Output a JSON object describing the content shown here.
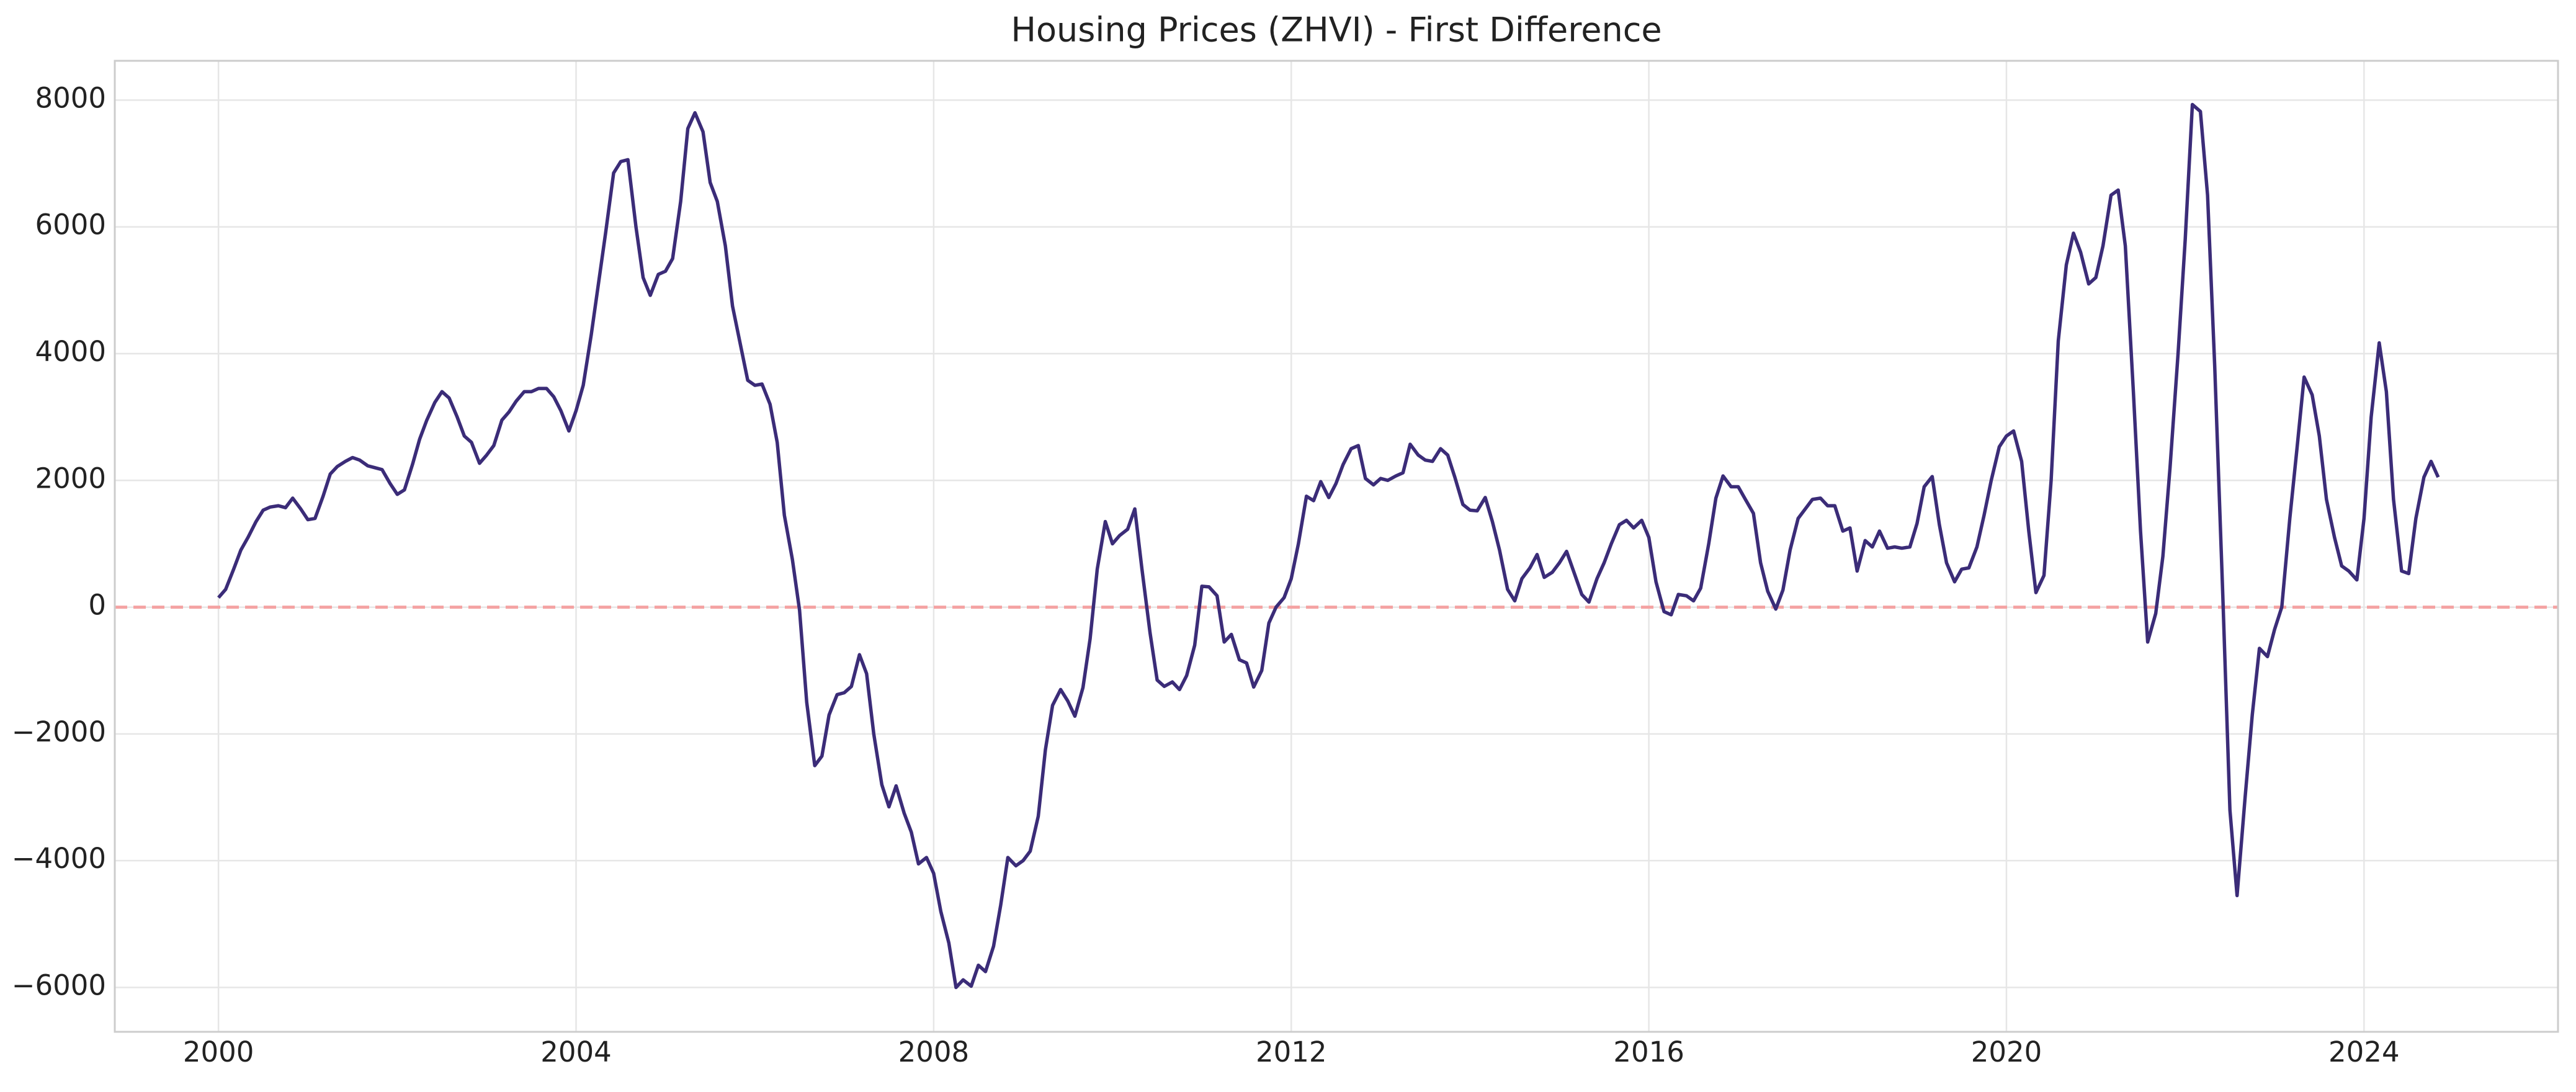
{
  "chart_data": {
    "type": "line",
    "title": "Housing Prices (ZHVI) - First Difference",
    "x": [
      2000.0,
      2000.08,
      2000.17,
      2000.25,
      2000.33,
      2000.42,
      2000.5,
      2000.58,
      2000.67,
      2000.75,
      2000.83,
      2000.92,
      2001.0,
      2001.08,
      2001.17,
      2001.25,
      2001.33,
      2001.42,
      2001.5,
      2001.58,
      2001.67,
      2001.75,
      2001.83,
      2001.92,
      2002.0,
      2002.08,
      2002.17,
      2002.25,
      2002.33,
      2002.42,
      2002.5,
      2002.58,
      2002.67,
      2002.75,
      2002.83,
      2002.92,
      2003.0,
      2003.08,
      2003.17,
      2003.25,
      2003.33,
      2003.42,
      2003.5,
      2003.58,
      2003.67,
      2003.75,
      2003.83,
      2003.92,
      2004.0,
      2004.08,
      2004.17,
      2004.25,
      2004.33,
      2004.42,
      2004.5,
      2004.58,
      2004.67,
      2004.75,
      2004.83,
      2004.92,
      2005.0,
      2005.08,
      2005.17,
      2005.25,
      2005.33,
      2005.42,
      2005.5,
      2005.58,
      2005.67,
      2005.75,
      2005.83,
      2005.92,
      2006.0,
      2006.08,
      2006.17,
      2006.25,
      2006.33,
      2006.42,
      2006.5,
      2006.58,
      2006.67,
      2006.75,
      2006.83,
      2006.92,
      2007.0,
      2007.08,
      2007.17,
      2007.25,
      2007.33,
      2007.42,
      2007.5,
      2007.58,
      2007.67,
      2007.75,
      2007.83,
      2007.92,
      2008.0,
      2008.08,
      2008.17,
      2008.25,
      2008.33,
      2008.42,
      2008.5,
      2008.58,
      2008.67,
      2008.75,
      2008.83,
      2008.92,
      2009.0,
      2009.08,
      2009.17,
      2009.25,
      2009.33,
      2009.42,
      2009.5,
      2009.58,
      2009.67,
      2009.75,
      2009.83,
      2009.92,
      2010.0,
      2010.08,
      2010.17,
      2010.25,
      2010.33,
      2010.42,
      2010.5,
      2010.58,
      2010.67,
      2010.75,
      2010.83,
      2010.92,
      2011.0,
      2011.08,
      2011.17,
      2011.25,
      2011.33,
      2011.42,
      2011.5,
      2011.58,
      2011.67,
      2011.75,
      2011.83,
      2011.92,
      2012.0,
      2012.08,
      2012.17,
      2012.25,
      2012.33,
      2012.42,
      2012.5,
      2012.58,
      2012.67,
      2012.75,
      2012.83,
      2012.92,
      2013.0,
      2013.08,
      2013.17,
      2013.25,
      2013.33,
      2013.42,
      2013.5,
      2013.58,
      2013.67,
      2013.75,
      2013.83,
      2013.92,
      2014.0,
      2014.08,
      2014.17,
      2014.25,
      2014.33,
      2014.42,
      2014.5,
      2014.58,
      2014.67,
      2014.75,
      2014.83,
      2014.92,
      2015.0,
      2015.08,
      2015.17,
      2015.25,
      2015.33,
      2015.42,
      2015.5,
      2015.58,
      2015.67,
      2015.75,
      2015.83,
      2015.92,
      2016.0,
      2016.08,
      2016.17,
      2016.25,
      2016.33,
      2016.42,
      2016.5,
      2016.58,
      2016.67,
      2016.75,
      2016.83,
      2016.92,
      2017.0,
      2017.08,
      2017.17,
      2017.25,
      2017.33,
      2017.42,
      2017.5,
      2017.58,
      2017.67,
      2017.75,
      2017.83,
      2017.92,
      2018.0,
      2018.08,
      2018.17,
      2018.25,
      2018.33,
      2018.42,
      2018.5,
      2018.58,
      2018.67,
      2018.75,
      2018.83,
      2018.92,
      2019.0,
      2019.08,
      2019.17,
      2019.25,
      2019.33,
      2019.42,
      2019.5,
      2019.58,
      2019.67,
      2019.75,
      2019.83,
      2019.92,
      2020.0,
      2020.08,
      2020.17,
      2020.25,
      2020.33,
      2020.42,
      2020.5,
      2020.58,
      2020.67,
      2020.75,
      2020.83,
      2020.92,
      2021.0,
      2021.08,
      2021.17,
      2021.25,
      2021.33,
      2021.42,
      2021.5,
      2021.58,
      2021.67,
      2021.75,
      2021.83,
      2021.92,
      2022.0,
      2022.08,
      2022.17,
      2022.25,
      2022.33,
      2022.42,
      2022.5,
      2022.58,
      2022.67,
      2022.75,
      2022.83,
      2022.92,
      2023.0,
      2023.08,
      2023.17,
      2023.25,
      2023.33,
      2023.42,
      2023.5,
      2023.58,
      2023.67,
      2023.75,
      2023.83,
      2023.92,
      2024.0,
      2024.08,
      2024.17,
      2024.25,
      2024.33,
      2024.42,
      2024.5,
      2024.58,
      2024.67,
      2024.75,
      2024.83
    ],
    "values": [
      150,
      280,
      600,
      900,
      1100,
      1350,
      1530,
      1580,
      1600,
      1570,
      1720,
      1550,
      1380,
      1400,
      1750,
      2100,
      2220,
      2300,
      2360,
      2320,
      2230,
      2200,
      2170,
      1950,
      1780,
      1850,
      2250,
      2650,
      2950,
      3230,
      3400,
      3300,
      3000,
      2700,
      2600,
      2270,
      2400,
      2550,
      2950,
      3080,
      3250,
      3400,
      3400,
      3450,
      3450,
      3320,
      3100,
      2780,
      3100,
      3500,
      4300,
      5100,
      5900,
      6850,
      7030,
      7060,
      6000,
      5200,
      4920,
      5250,
      5300,
      5500,
      6400,
      7550,
      7800,
      7500,
      6700,
      6400,
      5700,
      4750,
      4200,
      3580,
      3500,
      3520,
      3200,
      2600,
      1450,
      750,
      -50,
      -1500,
      -2500,
      -2350,
      -1700,
      -1380,
      -1350,
      -1250,
      -750,
      -1050,
      -2000,
      -2800,
      -3150,
      -2820,
      -3250,
      -3550,
      -4050,
      -3950,
      -4200,
      -4800,
      -5300,
      -6000,
      -5880,
      -5980,
      -5650,
      -5750,
      -5350,
      -4700,
      -3950,
      -4080,
      -4000,
      -3850,
      -3300,
      -2250,
      -1550,
      -1300,
      -1480,
      -1720,
      -1270,
      -500,
      600,
      1350,
      1000,
      1130,
      1230,
      1550,
      600,
      -400,
      -1150,
      -1250,
      -1180,
      -1300,
      -1080,
      -600,
      330,
      320,
      180,
      -550,
      -430,
      -830,
      -880,
      -1260,
      -1000,
      -250,
      0,
      150,
      450,
      1000,
      1750,
      1680,
      1980,
      1730,
      1950,
      2250,
      2500,
      2550,
      2030,
      1930,
      2030,
      2000,
      2070,
      2120,
      2570,
      2400,
      2320,
      2300,
      2500,
      2400,
      2050,
      1620,
      1530,
      1520,
      1730,
      1350,
      900,
      280,
      100,
      450,
      620,
      830,
      470,
      550,
      700,
      880,
      520,
      200,
      80,
      450,
      700,
      1000,
      1300,
      1370,
      1250,
      1370,
      1100,
      400,
      -70,
      -120,
      200,
      180,
      100,
      300,
      1000,
      1720,
      2070,
      1900,
      1900,
      1700,
      1480,
      700,
      250,
      -30,
      270,
      900,
      1400,
      1550,
      1700,
      1720,
      1600,
      1600,
      1200,
      1250,
      570,
      1050,
      950,
      1200,
      930,
      950,
      930,
      950,
      1320,
      1900,
      2060,
      1300,
      700,
      400,
      600,
      620,
      950,
      1450,
      2000,
      2530,
      2700,
      2780,
      2300,
      1200,
      230,
      500,
      2000,
      4200,
      5400,
      5900,
      5600,
      5100,
      5200,
      5700,
      6500,
      6580,
      5700,
      3400,
      1200,
      -550,
      -100,
      800,
      2200,
      4000,
      5800,
      7930,
      7820,
      6500,
      3800,
      200,
      -3200,
      -4550,
      -3000,
      -1700,
      -650,
      -780,
      -350,
      0,
      1400,
      2500,
      3630,
      3350,
      2700,
      1700,
      1100,
      650,
      570,
      430,
      1400,
      3000,
      4170,
      3400,
      1700,
      570,
      530,
      1400,
      2050,
      2300,
      2050
    ],
    "color": "#3b2c78",
    "hline": 0,
    "hline_color": "#f4a3a3",
    "xlim": [
      1998.84,
      2026.17
    ],
    "xticks": [
      2000,
      2004,
      2008,
      2012,
      2016,
      2020,
      2024
    ],
    "ylim": [
      -6700,
      8620
    ],
    "yticks": [
      {
        "value": -6000,
        "label": "−6000"
      },
      {
        "value": -4000,
        "label": "−4000"
      },
      {
        "value": -2000,
        "label": "−2000"
      },
      0,
      2000,
      4000,
      6000,
      8000
    ],
    "grid": true
  }
}
